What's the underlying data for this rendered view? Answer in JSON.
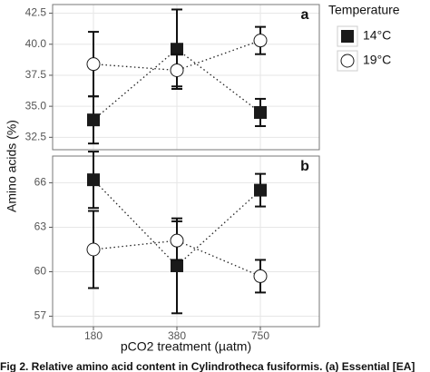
{
  "chart_data": [
    {
      "type": "line",
      "panel_label": "a",
      "y_label": "Amino acids (%)",
      "legend_title": "Temperature",
      "ylim": [
        31.5,
        43.2
      ],
      "yticks": [
        32.5,
        {
          "value": 35,
          "label": "35.0"
        },
        37.5,
        {
          "value": 40,
          "label": "40.0"
        },
        42.5
      ],
      "series": [
        {
          "name": "14°C",
          "color": "#1a1a1a",
          "marker": "square",
          "values": [
            33.9,
            39.6,
            34.5
          ],
          "error": [
            1.9,
            3.2,
            1.1
          ]
        },
        {
          "name": "19°C",
          "color": "#ffffff",
          "marker": "circle",
          "values": [
            38.4,
            37.9,
            40.3
          ],
          "error": [
            2.6,
            1.3,
            1.1
          ]
        }
      ]
    },
    {
      "type": "line",
      "panel_label": "b",
      "x_label": "pCO2 treatment (µatm)",
      "categories": [
        "180",
        "380",
        "750"
      ],
      "ylim": [
        56.3,
        67.8
      ],
      "yticks": [
        57,
        60,
        63,
        66
      ],
      "series": [
        {
          "name": "14°C",
          "color": "#1a1a1a",
          "marker": "square",
          "values": [
            66.2,
            60.4,
            65.5
          ],
          "error": [
            1.9,
            3.2,
            1.1
          ]
        },
        {
          "name": "19°C",
          "color": "#ffffff",
          "marker": "circle",
          "values": [
            61.5,
            62.1,
            59.7
          ],
          "error": [
            2.6,
            1.3,
            1.1
          ]
        }
      ]
    }
  ],
  "caption": "Fig 2. Relative amino acid content in Cylindrotheca fusiformis. (a) Essential [EA]"
}
